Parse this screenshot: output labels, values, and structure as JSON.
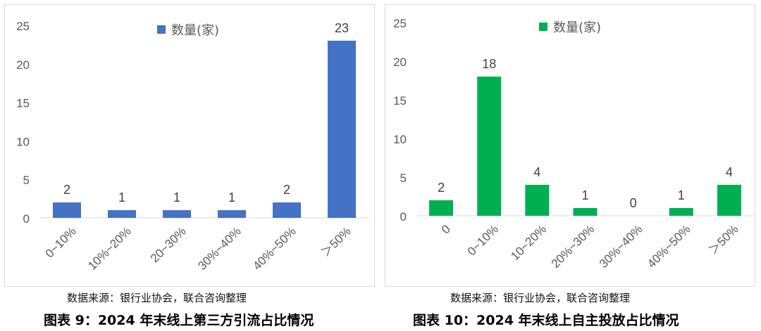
{
  "chart_data": [
    {
      "type": "bar",
      "categories": [
        "0~10%",
        "10%~20%",
        "20~30%",
        "30%~40%",
        "40%~50%",
        "＞50%"
      ],
      "series": [
        {
          "name": "数量(家)",
          "values": [
            2,
            1,
            1,
            1,
            2,
            23
          ],
          "color": "#4472C4"
        }
      ],
      "ylim": [
        0,
        25
      ],
      "yticks": [
        0,
        5,
        10,
        15,
        20,
        25
      ],
      "grid": false,
      "legend": "top-center",
      "source": "数据来源：银行业协会，联合咨询整理",
      "caption": "图表 9：2024 年末线上第三方引流占比情况"
    },
    {
      "type": "bar",
      "categories": [
        "0",
        "0~10%",
        "10~20%",
        "20%~30%",
        "30%~40%",
        "40%~50%",
        "＞50%"
      ],
      "series": [
        {
          "name": "数量(家)",
          "values": [
            2,
            18,
            4,
            1,
            0,
            1,
            4
          ],
          "color": "#00B050"
        }
      ],
      "ylim": [
        0,
        25
      ],
      "yticks": [
        0,
        5,
        10,
        15,
        20,
        25
      ],
      "grid": false,
      "legend": "top-center",
      "source": "数据来源：银行业协会，联合咨询整理",
      "caption": "图表 10：2024 年末线上自主投放占比情况"
    }
  ]
}
